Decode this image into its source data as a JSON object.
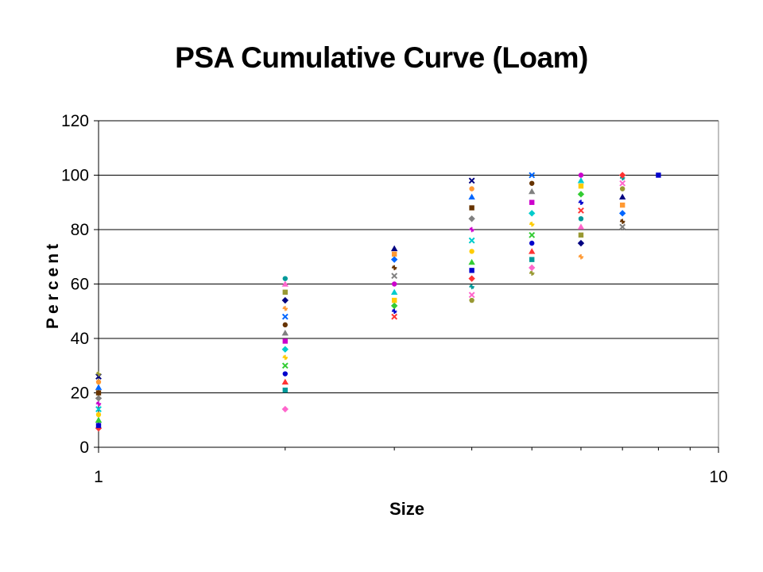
{
  "chart_data": {
    "type": "scatter",
    "title": "PSA Cumulative Curve (Loam)",
    "xlabel": "Size",
    "ylabel": "Percent",
    "xscale": "log",
    "xlim": [
      1,
      10
    ],
    "ylim": [
      0,
      120
    ],
    "x_ticks": [
      "1",
      "10"
    ],
    "y_ticks": [
      "0",
      "20",
      "40",
      "60",
      "80",
      "100",
      "120"
    ],
    "grid": "horizontal",
    "legend": "none",
    "series": [
      {
        "x": 1,
        "values": [
          7,
          8,
          10,
          12,
          14,
          16,
          18,
          20,
          22,
          24,
          26,
          27
        ]
      },
      {
        "x": 2,
        "values": [
          14,
          21,
          24,
          27,
          30,
          33,
          36,
          39,
          42,
          45,
          48,
          51,
          54,
          57,
          60,
          62
        ]
      },
      {
        "x": 3,
        "values": [
          48,
          50,
          52,
          54,
          57,
          60,
          63,
          66,
          69,
          71,
          73
        ]
      },
      {
        "x": 4,
        "values": [
          54,
          56,
          59,
          62,
          65,
          68,
          72,
          76,
          80,
          84,
          88,
          92,
          95,
          98
        ]
      },
      {
        "x": 5,
        "values": [
          64,
          66,
          69,
          72,
          75,
          78,
          82,
          86,
          90,
          94,
          97,
          100
        ]
      },
      {
        "x": 6,
        "values": [
          70,
          75,
          78,
          81,
          84,
          87,
          90,
          93,
          96,
          98,
          100
        ]
      },
      {
        "x": 7,
        "values": [
          81,
          83,
          86,
          89,
          92,
          95,
          97,
          99,
          100
        ]
      },
      {
        "x": 8,
        "values": [
          100
        ]
      }
    ],
    "colors": [
      "#ff3333",
      "#0000cc",
      "#33cc33",
      "#ffcc00",
      "#00cccc",
      "#cc00cc",
      "#808080",
      "#663300",
      "#0066ff",
      "#ff9933",
      "#000080",
      "#999933",
      "#ff66cc",
      "#009999"
    ],
    "axis_color": "#000000",
    "grid_color": "#000000"
  }
}
